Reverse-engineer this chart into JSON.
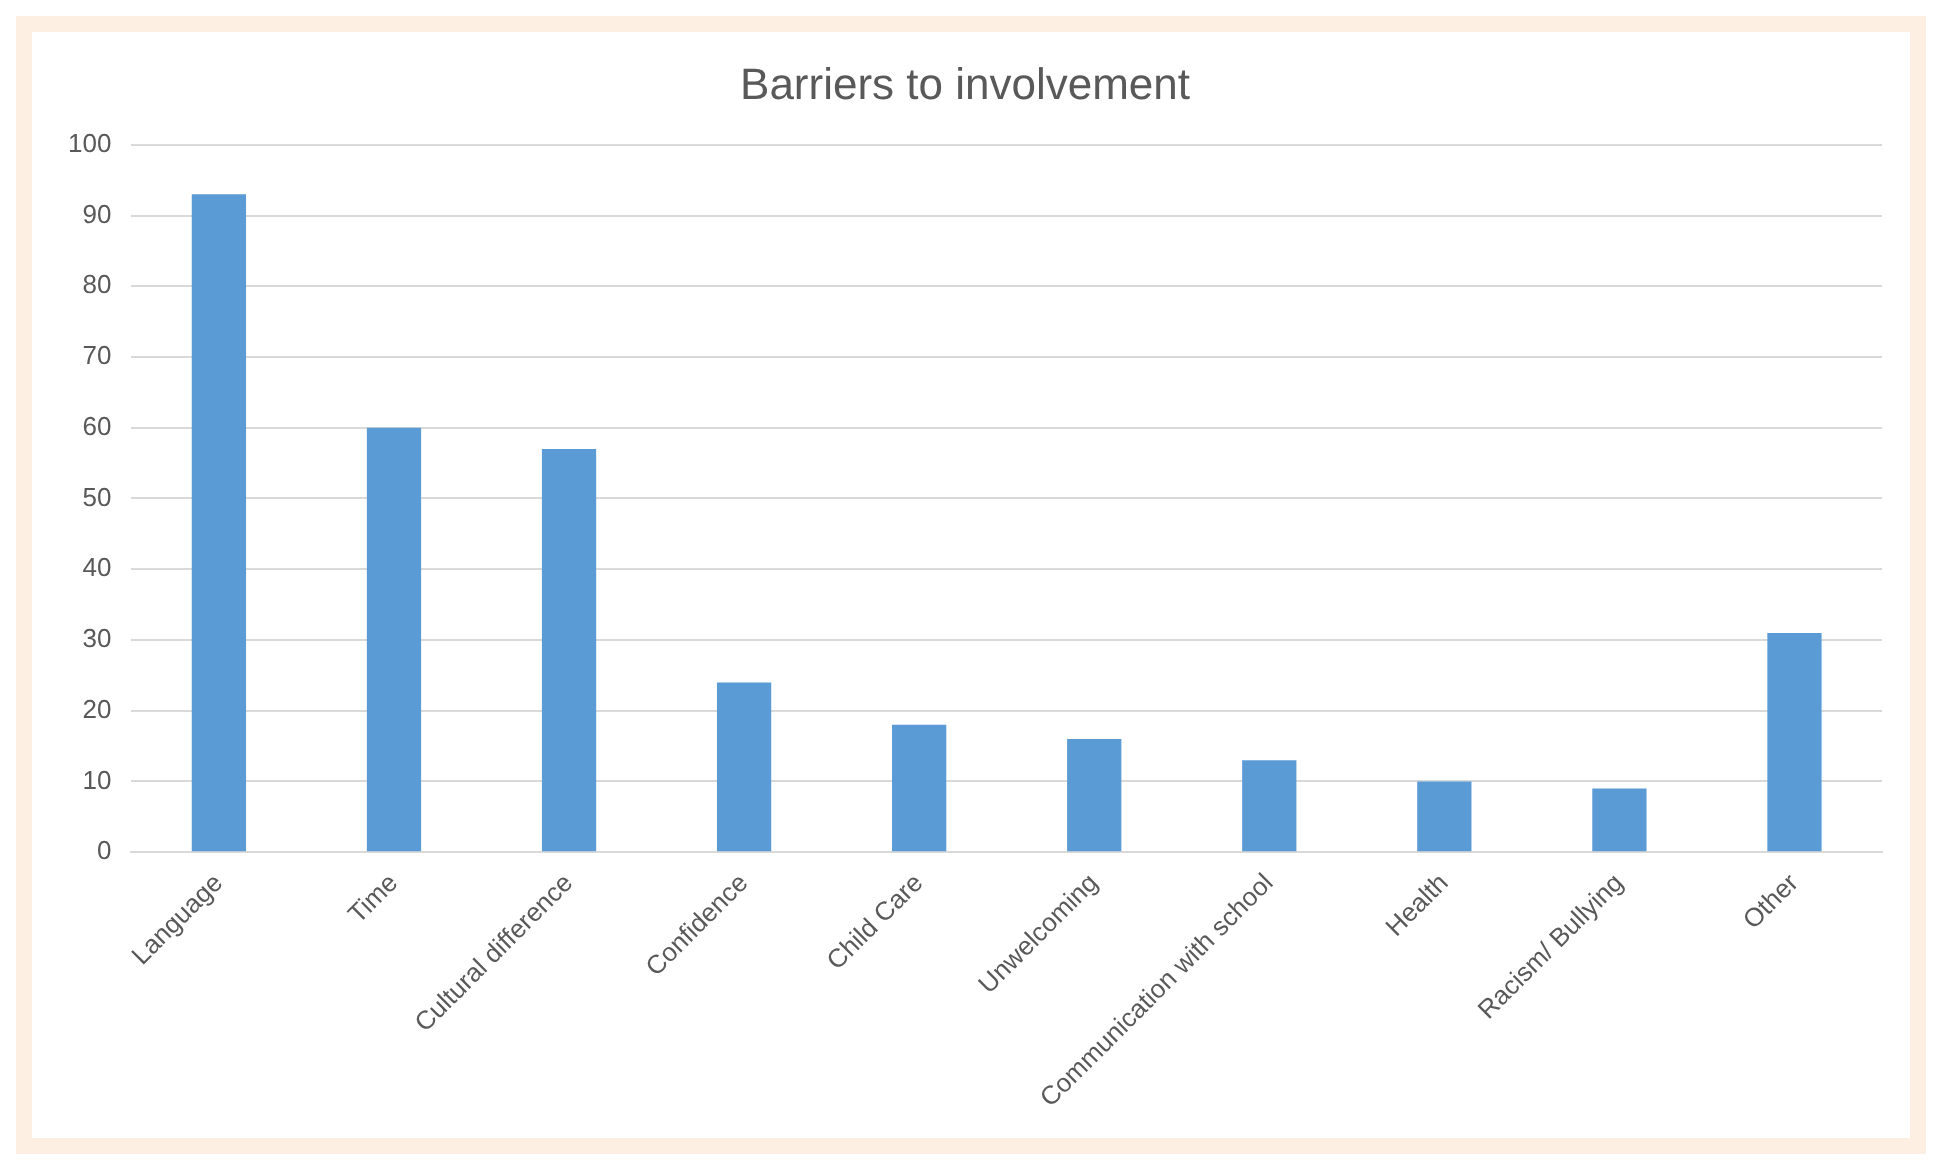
{
  "chart_data": {
    "type": "bar",
    "title": "Barriers to involvement",
    "categories": [
      "Language",
      "Time",
      "Cultural difference",
      "Confidence",
      "Child Care",
      "Unwelcoming",
      "Communication with school",
      "Health",
      "Racism/ Bullying",
      "Other"
    ],
    "values": [
      93,
      60,
      57,
      24,
      18,
      16,
      13,
      10,
      9,
      31
    ],
    "color": "#5b9bd5",
    "ylim": [
      0,
      100
    ],
    "yticks": [
      0,
      10,
      20,
      30,
      40,
      50,
      60,
      70,
      80,
      90,
      100
    ],
    "grid": "y",
    "legend": false
  }
}
